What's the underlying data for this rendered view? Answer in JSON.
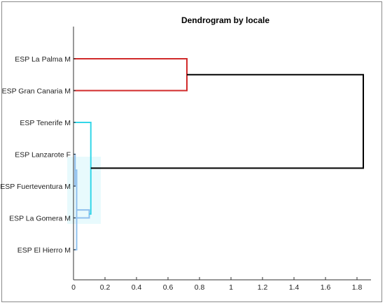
{
  "chart_data": {
    "type": "dendrogram",
    "title": "Dendrogram by locale",
    "xlabel": "",
    "ylabel": "",
    "xlim": [
      0,
      1.9
    ],
    "xticks": [
      "0",
      "0.2",
      "0.4",
      "0.6",
      "0.8",
      "1",
      "1.2",
      "1.4",
      "1.6",
      "1.8"
    ],
    "xtick_values": [
      0,
      0.2,
      0.4,
      0.6,
      0.8,
      1.0,
      1.2,
      1.4,
      1.6,
      1.8
    ],
    "leaves": [
      "ESP La Palma M",
      "ESP Gran Canaria M",
      "ESP Tenerife M",
      "ESP Lanzarote F",
      "ESP Fuerteventura M",
      "ESP La Gomera M",
      "ESP El Hierro M"
    ],
    "merges": [
      {
        "left": [
          3,
          4
        ],
        "height": 0.01,
        "color": "#8fc0ee"
      },
      {
        "left": [
          "m0",
          6
        ],
        "height": 0.02,
        "color": "#8fc0ee"
      },
      {
        "left": [
          "m1",
          5
        ],
        "height": 0.1,
        "color": "#8fc0ee"
      },
      {
        "left": [
          2,
          "m2"
        ],
        "height": 0.11,
        "color": "#33d6e8"
      },
      {
        "left": [
          0,
          1
        ],
        "height": 0.72,
        "color": "#d12a2a"
      },
      {
        "left": [
          "m4",
          "m3"
        ],
        "height": 1.84,
        "color": "#000000"
      }
    ],
    "grid": false,
    "legend": "none"
  }
}
